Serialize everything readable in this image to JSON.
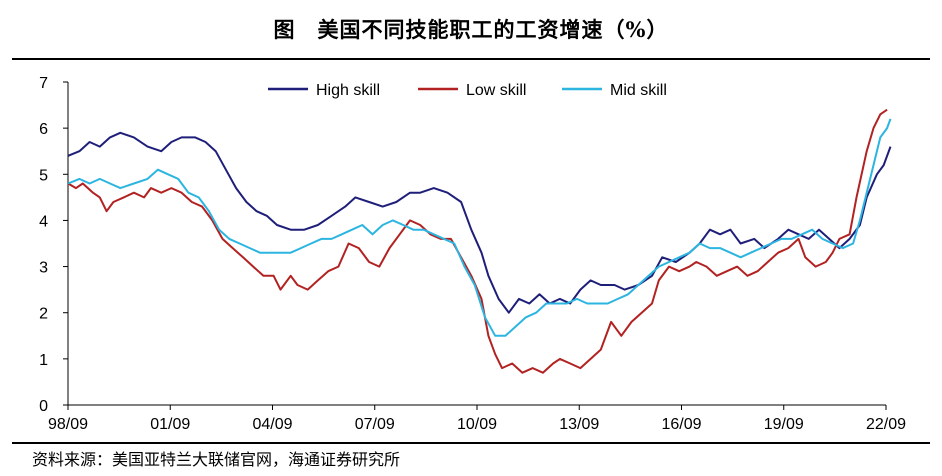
{
  "title": "图　美国不同技能职工的工资增速（%）",
  "source": "资料来源：美国亚特兰大联储官网，海通证券研究所",
  "chart_data": {
    "type": "line",
    "title": "图　美国不同技能职工的工资增速（%）",
    "xlabel": "",
    "ylabel": "",
    "ylim": [
      0,
      7
    ],
    "yticks": [
      "0",
      "1",
      "2",
      "3",
      "4",
      "5",
      "6",
      "7"
    ],
    "xticks": [
      "98/09",
      "01/09",
      "04/09",
      "07/09",
      "10/09",
      "13/09",
      "16/09",
      "19/09",
      "22/09"
    ],
    "x_start": "1998-09",
    "x_end": "2022-09",
    "grid": false,
    "legend": "top",
    "series": [
      {
        "name": "High skill",
        "color": "#1F1F7A",
        "values": [
          [
            1998.67,
            5.4
          ],
          [
            1999.0,
            5.5
          ],
          [
            1999.3,
            5.7
          ],
          [
            1999.6,
            5.6
          ],
          [
            1999.9,
            5.8
          ],
          [
            2000.2,
            5.9
          ],
          [
            2000.6,
            5.8
          ],
          [
            2001.0,
            5.6
          ],
          [
            2001.4,
            5.5
          ],
          [
            2001.7,
            5.7
          ],
          [
            2002.0,
            5.8
          ],
          [
            2002.4,
            5.8
          ],
          [
            2002.7,
            5.7
          ],
          [
            2003.0,
            5.5
          ],
          [
            2003.3,
            5.1
          ],
          [
            2003.6,
            4.7
          ],
          [
            2003.9,
            4.4
          ],
          [
            2004.2,
            4.2
          ],
          [
            2004.5,
            4.1
          ],
          [
            2004.8,
            3.9
          ],
          [
            2005.2,
            3.8
          ],
          [
            2005.6,
            3.8
          ],
          [
            2006.0,
            3.9
          ],
          [
            2006.4,
            4.1
          ],
          [
            2006.8,
            4.3
          ],
          [
            2007.1,
            4.5
          ],
          [
            2007.5,
            4.4
          ],
          [
            2007.9,
            4.3
          ],
          [
            2008.3,
            4.4
          ],
          [
            2008.7,
            4.6
          ],
          [
            2009.0,
            4.6
          ],
          [
            2009.4,
            4.7
          ],
          [
            2009.8,
            4.6
          ],
          [
            2010.2,
            4.4
          ],
          [
            2010.5,
            3.8
          ],
          [
            2010.8,
            3.3
          ],
          [
            2011.0,
            2.8
          ],
          [
            2011.3,
            2.3
          ],
          [
            2011.6,
            2.0
          ],
          [
            2011.9,
            2.3
          ],
          [
            2012.2,
            2.2
          ],
          [
            2012.5,
            2.4
          ],
          [
            2012.8,
            2.2
          ],
          [
            2013.1,
            2.3
          ],
          [
            2013.4,
            2.2
          ],
          [
            2013.7,
            2.5
          ],
          [
            2014.0,
            2.7
          ],
          [
            2014.3,
            2.6
          ],
          [
            2014.7,
            2.6
          ],
          [
            2015.0,
            2.5
          ],
          [
            2015.4,
            2.6
          ],
          [
            2015.8,
            2.8
          ],
          [
            2016.1,
            3.2
          ],
          [
            2016.5,
            3.1
          ],
          [
            2016.9,
            3.3
          ],
          [
            2017.2,
            3.5
          ],
          [
            2017.5,
            3.8
          ],
          [
            2017.8,
            3.7
          ],
          [
            2018.1,
            3.8
          ],
          [
            2018.4,
            3.5
          ],
          [
            2018.8,
            3.6
          ],
          [
            2019.1,
            3.4
          ],
          [
            2019.5,
            3.6
          ],
          [
            2019.8,
            3.8
          ],
          [
            2020.1,
            3.7
          ],
          [
            2020.4,
            3.6
          ],
          [
            2020.7,
            3.8
          ],
          [
            2021.0,
            3.6
          ],
          [
            2021.3,
            3.4
          ],
          [
            2021.6,
            3.6
          ],
          [
            2021.9,
            3.9
          ],
          [
            2022.1,
            4.5
          ],
          [
            2022.4,
            5.0
          ],
          [
            2022.6,
            5.2
          ],
          [
            2022.8,
            5.6
          ]
        ]
      },
      {
        "name": "Low skill",
        "color": "#B22222",
        "values": [
          [
            1998.67,
            4.8
          ],
          [
            1998.9,
            4.7
          ],
          [
            1999.1,
            4.8
          ],
          [
            1999.4,
            4.6
          ],
          [
            1999.6,
            4.5
          ],
          [
            1999.8,
            4.2
          ],
          [
            2000.0,
            4.4
          ],
          [
            2000.3,
            4.5
          ],
          [
            2000.6,
            4.6
          ],
          [
            2000.9,
            4.5
          ],
          [
            2001.1,
            4.7
          ],
          [
            2001.4,
            4.6
          ],
          [
            2001.7,
            4.7
          ],
          [
            2002.0,
            4.6
          ],
          [
            2002.3,
            4.4
          ],
          [
            2002.6,
            4.3
          ],
          [
            2002.9,
            4.0
          ],
          [
            2003.2,
            3.6
          ],
          [
            2003.5,
            3.4
          ],
          [
            2003.8,
            3.2
          ],
          [
            2004.1,
            3.0
          ],
          [
            2004.4,
            2.8
          ],
          [
            2004.7,
            2.8
          ],
          [
            2004.9,
            2.5
          ],
          [
            2005.2,
            2.8
          ],
          [
            2005.4,
            2.6
          ],
          [
            2005.7,
            2.5
          ],
          [
            2006.0,
            2.7
          ],
          [
            2006.3,
            2.9
          ],
          [
            2006.6,
            3.0
          ],
          [
            2006.9,
            3.5
          ],
          [
            2007.2,
            3.4
          ],
          [
            2007.5,
            3.1
          ],
          [
            2007.8,
            3.0
          ],
          [
            2008.1,
            3.4
          ],
          [
            2008.4,
            3.7
          ],
          [
            2008.7,
            4.0
          ],
          [
            2009.0,
            3.9
          ],
          [
            2009.3,
            3.7
          ],
          [
            2009.6,
            3.6
          ],
          [
            2009.9,
            3.6
          ],
          [
            2010.2,
            3.2
          ],
          [
            2010.5,
            2.8
          ],
          [
            2010.8,
            2.3
          ],
          [
            2011.0,
            1.5
          ],
          [
            2011.2,
            1.1
          ],
          [
            2011.4,
            0.8
          ],
          [
            2011.7,
            0.9
          ],
          [
            2012.0,
            0.7
          ],
          [
            2012.3,
            0.8
          ],
          [
            2012.6,
            0.7
          ],
          [
            2012.9,
            0.9
          ],
          [
            2013.1,
            1.0
          ],
          [
            2013.4,
            0.9
          ],
          [
            2013.7,
            0.8
          ],
          [
            2014.0,
            1.0
          ],
          [
            2014.3,
            1.2
          ],
          [
            2014.6,
            1.8
          ],
          [
            2014.9,
            1.5
          ],
          [
            2015.2,
            1.8
          ],
          [
            2015.5,
            2.0
          ],
          [
            2015.8,
            2.2
          ],
          [
            2016.0,
            2.7
          ],
          [
            2016.3,
            3.0
          ],
          [
            2016.6,
            2.9
          ],
          [
            2016.9,
            3.0
          ],
          [
            2017.1,
            3.1
          ],
          [
            2017.4,
            3.0
          ],
          [
            2017.7,
            2.8
          ],
          [
            2018.0,
            2.9
          ],
          [
            2018.3,
            3.0
          ],
          [
            2018.6,
            2.8
          ],
          [
            2018.9,
            2.9
          ],
          [
            2019.2,
            3.1
          ],
          [
            2019.5,
            3.3
          ],
          [
            2019.8,
            3.4
          ],
          [
            2020.1,
            3.6
          ],
          [
            2020.3,
            3.2
          ],
          [
            2020.6,
            3.0
          ],
          [
            2020.9,
            3.1
          ],
          [
            2021.1,
            3.3
          ],
          [
            2021.3,
            3.6
          ],
          [
            2021.6,
            3.7
          ],
          [
            2021.8,
            4.5
          ],
          [
            2022.1,
            5.5
          ],
          [
            2022.3,
            6.0
          ],
          [
            2022.5,
            6.3
          ],
          [
            2022.7,
            6.4
          ]
        ]
      },
      {
        "name": "Mid skill",
        "color": "#2CB5E0",
        "values": [
          [
            1998.67,
            4.8
          ],
          [
            1999.0,
            4.9
          ],
          [
            1999.3,
            4.8
          ],
          [
            1999.6,
            4.9
          ],
          [
            1999.9,
            4.8
          ],
          [
            2000.2,
            4.7
          ],
          [
            2000.6,
            4.8
          ],
          [
            2001.0,
            4.9
          ],
          [
            2001.3,
            5.1
          ],
          [
            2001.6,
            5.0
          ],
          [
            2001.9,
            4.9
          ],
          [
            2002.2,
            4.6
          ],
          [
            2002.5,
            4.5
          ],
          [
            2002.8,
            4.2
          ],
          [
            2003.1,
            3.8
          ],
          [
            2003.4,
            3.6
          ],
          [
            2003.7,
            3.5
          ],
          [
            2004.0,
            3.4
          ],
          [
            2004.3,
            3.3
          ],
          [
            2004.6,
            3.3
          ],
          [
            2004.9,
            3.3
          ],
          [
            2005.2,
            3.3
          ],
          [
            2005.5,
            3.4
          ],
          [
            2005.8,
            3.5
          ],
          [
            2006.1,
            3.6
          ],
          [
            2006.4,
            3.6
          ],
          [
            2006.7,
            3.7
          ],
          [
            2007.0,
            3.8
          ],
          [
            2007.3,
            3.9
          ],
          [
            2007.6,
            3.7
          ],
          [
            2007.9,
            3.9
          ],
          [
            2008.2,
            4.0
          ],
          [
            2008.5,
            3.9
          ],
          [
            2008.8,
            3.8
          ],
          [
            2009.1,
            3.8
          ],
          [
            2009.4,
            3.7
          ],
          [
            2009.7,
            3.6
          ],
          [
            2010.0,
            3.5
          ],
          [
            2010.3,
            3.0
          ],
          [
            2010.6,
            2.6
          ],
          [
            2010.9,
            1.9
          ],
          [
            2011.2,
            1.5
          ],
          [
            2011.5,
            1.5
          ],
          [
            2011.8,
            1.7
          ],
          [
            2012.1,
            1.9
          ],
          [
            2012.4,
            2.0
          ],
          [
            2012.7,
            2.2
          ],
          [
            2013.0,
            2.2
          ],
          [
            2013.3,
            2.2
          ],
          [
            2013.6,
            2.3
          ],
          [
            2013.9,
            2.2
          ],
          [
            2014.2,
            2.2
          ],
          [
            2014.5,
            2.2
          ],
          [
            2014.8,
            2.3
          ],
          [
            2015.1,
            2.4
          ],
          [
            2015.4,
            2.6
          ],
          [
            2015.7,
            2.8
          ],
          [
            2016.0,
            3.0
          ],
          [
            2016.3,
            3.1
          ],
          [
            2016.6,
            3.2
          ],
          [
            2016.9,
            3.3
          ],
          [
            2017.2,
            3.5
          ],
          [
            2017.5,
            3.4
          ],
          [
            2017.8,
            3.4
          ],
          [
            2018.1,
            3.3
          ],
          [
            2018.4,
            3.2
          ],
          [
            2018.7,
            3.3
          ],
          [
            2019.0,
            3.4
          ],
          [
            2019.3,
            3.5
          ],
          [
            2019.6,
            3.6
          ],
          [
            2019.9,
            3.6
          ],
          [
            2020.2,
            3.7
          ],
          [
            2020.5,
            3.8
          ],
          [
            2020.8,
            3.6
          ],
          [
            2021.1,
            3.5
          ],
          [
            2021.4,
            3.4
          ],
          [
            2021.7,
            3.5
          ],
          [
            2021.9,
            4.0
          ],
          [
            2022.1,
            4.6
          ],
          [
            2022.3,
            5.2
          ],
          [
            2022.5,
            5.8
          ],
          [
            2022.7,
            6.0
          ],
          [
            2022.8,
            6.2
          ]
        ]
      }
    ]
  }
}
